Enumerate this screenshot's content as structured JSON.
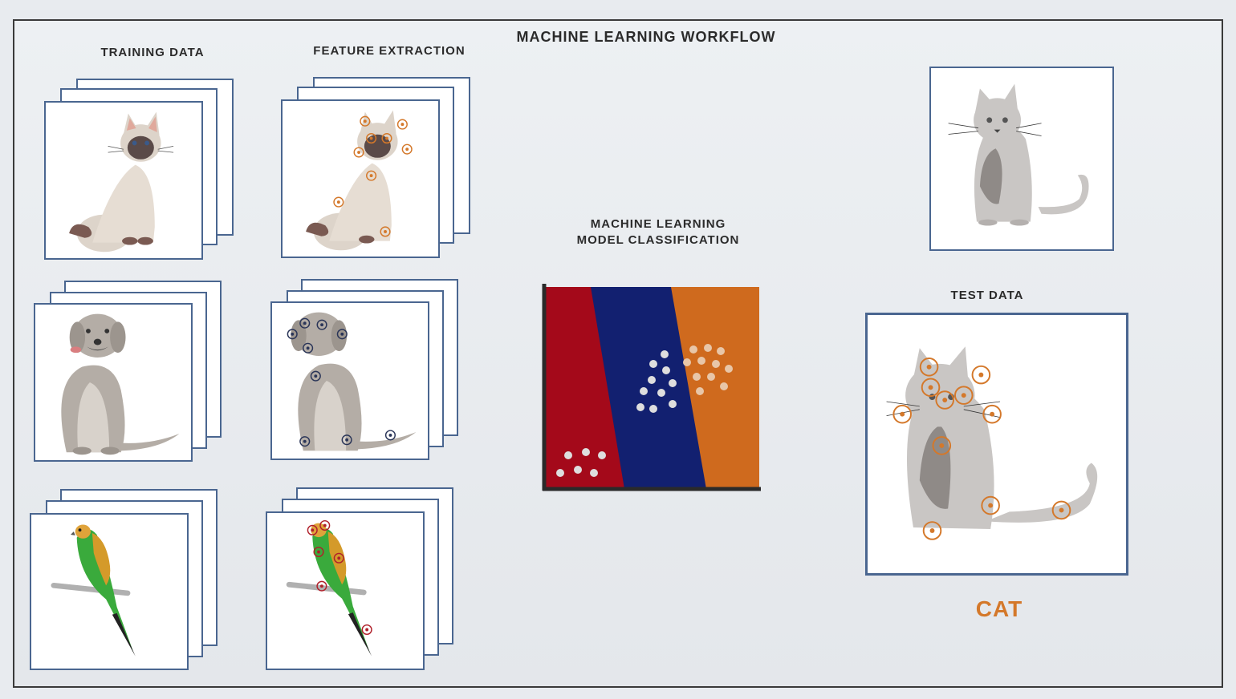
{
  "title": "MACHINE LEARNING WORKFLOW",
  "labels": {
    "training_data": "TRAINING DATA",
    "feature_extraction": "FEATURE EXTRACTION",
    "model_line1": "MACHINE LEARNING",
    "model_line2": "MODEL CLASSIFICATION",
    "test_data": "TEST DATA",
    "result": "CAT"
  },
  "images": {
    "training": [
      "siamese-cat",
      "dog",
      "parakeet"
    ],
    "features": [
      "siamese-cat-features",
      "dog-features",
      "parakeet-features"
    ],
    "test": [
      "gray-cat",
      "gray-cat-features"
    ]
  },
  "colors": {
    "class_red": "#a4091a",
    "class_blue": "#122070",
    "class_orange": "#cf6a1e",
    "result_orange": "#d4782a",
    "card_border": "#4a6690",
    "feature_marker": "#d4782a",
    "dog_marker": "#2a3558"
  }
}
